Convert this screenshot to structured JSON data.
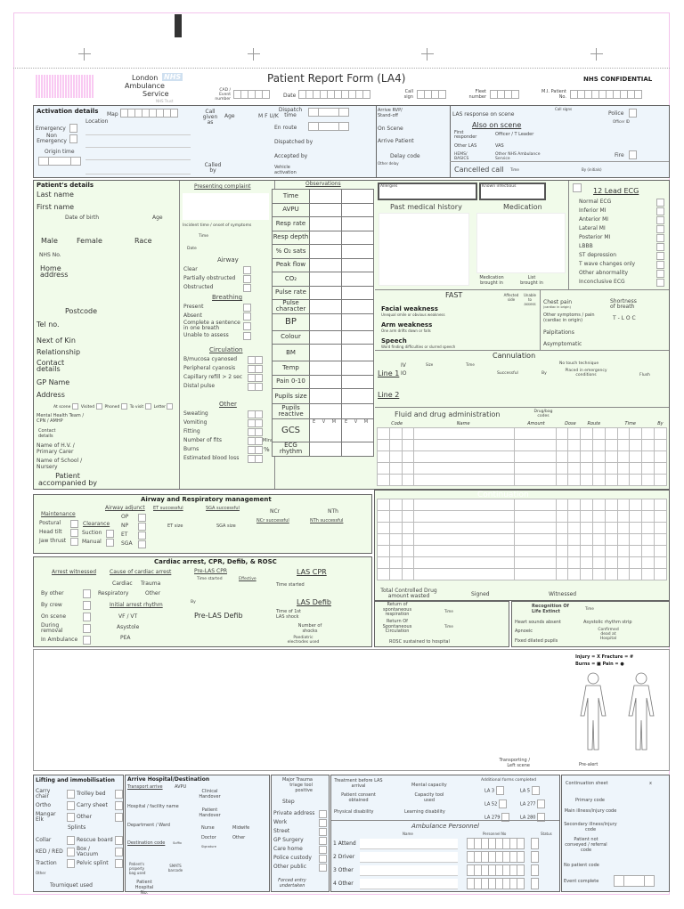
{
  "header": {
    "org_line1": "London",
    "org_line2": "Ambulance",
    "org_line3": "Service",
    "org_sub": "NHS Trust",
    "nhs_logo": "NHS",
    "title": "Patient Report Form (LA4)",
    "confidential": "NHS CONFIDENTIAL",
    "cad": "CAD / Event number",
    "date": "Date",
    "call_sign": "Call sign",
    "fleet": "Fleet number",
    "mi": "M.I. Patient No."
  },
  "activation": {
    "title": "Activation details",
    "map": "Map",
    "location": "Location",
    "emergency": "Emergency",
    "non_emergency": "Non Emergency",
    "origin_time": "Origin time",
    "call_given_as": "Call given as",
    "age": "Age",
    "sex": "M   F   U/K",
    "called_by": "Called by",
    "dispatch_time": "Dispatch time",
    "en_route": "En route",
    "dispatched_by": "Dispatched by",
    "accepted_by": "Accepted by",
    "vehicle_activation": "Vehicle activation",
    "arrive_standoff": "Arrive RVP/ Stand-off",
    "on_scene": "On Scene",
    "arrive_patient": "Arrive Patient",
    "delay_code": "Delay code",
    "other_delay": "Other delay",
    "las_response": "LAS response on scene",
    "also_on_scene": "Also on scene",
    "first_responder": "First responder",
    "officer_leader": "Officer / T Leader",
    "other_las": "Other LAS",
    "vas": "VAS",
    "hems": "HEMS/ BASICS",
    "other_nhs": "Other NHS Ambulance Service",
    "call_signs": "Call signs",
    "police": "Police",
    "officer_id": "Officer ID",
    "fire": "Fire",
    "cancelled_call": "Cancelled call",
    "time": "Time",
    "by_initials": "By (initials)"
  },
  "patient": {
    "title": "Patient's details",
    "last_name": "Last name",
    "first_name": "First name",
    "dob": "Date of birth",
    "age": "Age",
    "male": "Male",
    "female": "Female",
    "race": "Race",
    "nhs_no": "NHS No.",
    "home_address": "Home address",
    "postcode": "Postcode",
    "tel": "Tel no.",
    "next_of_kin": "Next of Kin",
    "relationship": "Relationship",
    "contact_details": "Contact details",
    "gp_name": "GP Name",
    "address": "Address",
    "gp_visit": [
      "At scene",
      "Visited",
      "Phoned",
      "To visit",
      "Letter"
    ],
    "mental_health": "Mental Health Team / CPN / AMHP",
    "mh_contact": "Contact details",
    "hv": "Name of H.V. / Primary Carer",
    "school": "Name of School / Nursery",
    "accompanied": "Patient accompanied by"
  },
  "complaint": {
    "title": "Presenting complaint",
    "incident_time": "Incident time / onset of symptoms",
    "time": "Time",
    "date": "Date",
    "airway": "Airway",
    "airway_items": [
      "Clear",
      "Partially obstructed",
      "Obstructed"
    ],
    "breathing": "Breathing",
    "breathing_items": [
      "Present",
      "Absent",
      "Complete a sentence in one breath",
      "Unable to assess"
    ],
    "circulation": "Circulation",
    "circulation_items": [
      "B/mucosa cyanosed",
      "Peripheral cyanosis",
      "Capillary refill > 2 sec",
      "Distal pulse"
    ],
    "other": "Other",
    "other_items": [
      "Sweating",
      "Vomiting",
      "Fitting",
      "Number of fits",
      "Burns",
      "Estimated blood loss"
    ],
    "mins": "Mins",
    "percent": "%"
  },
  "observations": {
    "title": "Observations",
    "rows": [
      "Time",
      "AVPU",
      "Resp rate",
      "Resp depth",
      "% O₂ sats",
      "Peak flow",
      "CO₂",
      "Pulse rate",
      "Pulse character",
      "BP",
      "Colour",
      "BM",
      "Temp",
      "Pain 0-10",
      "Pupils size",
      "Pupils reactive",
      "GCS",
      "ECG rhythm"
    ],
    "air": "Air",
    "o2": "O₂",
    "r": "R",
    "l": "L",
    "evm": "E V M"
  },
  "history": {
    "allergies": "Allergies",
    "infectious": "Known infectious",
    "pmh": "Past medical history",
    "medication": "Medication",
    "med_brought": "Medication brought in",
    "list_brought": "List brought in"
  },
  "ecg": {
    "title": "12 Lead ECG",
    "items": [
      "Normal ECG",
      "Inferior MI",
      "Anterior MI",
      "Lateral MI",
      "Posterior MI",
      "LBBB",
      "ST depression",
      "T wave changes only",
      "Other abnormality",
      "Inconclusive ECG"
    ]
  },
  "fast": {
    "title": "FAST",
    "unable": "Unable to assess",
    "affected": "Affected side",
    "facial": "Facial weakness",
    "facial_sub": "Unequal smile or obvious weakness",
    "arm": "Arm weakness",
    "arm_sub": "One arm drifts down or falls",
    "speech": "Speech",
    "speech_sub": "Word finding difficulties or slurred speech",
    "chest_pain": "Chest pain",
    "chest_sub": "(cardiac in origin)",
    "other_symptoms": "Other symptoms / pain (cardiac in origin)",
    "palpitations": "Palpitations",
    "asymptomatic": "Asymptomatic",
    "sob": "Shortness of breath",
    "tloc": "T - L O C",
    "y": "Y",
    "n": "N"
  },
  "cannulation": {
    "title": "Cannulation",
    "line1": "Line 1",
    "line2": "Line 2",
    "iv": "IV",
    "io": "IO",
    "size": "Size",
    "time": "Time",
    "successful": "Successful",
    "by": "By",
    "no_touch": "No touch technique",
    "emergency": "Placed in emergency conditions",
    "flush": "Flush",
    "g": "g"
  },
  "fluids": {
    "title": "Fluid and drug administration",
    "drug_codes": "Drug/bag codes",
    "cols": [
      "Code",
      "Name",
      "Amount",
      "Dose",
      "Route",
      "Time",
      "By"
    ],
    "continuation": "Continuation",
    "total_cd": "Total Controlled Drug amount wasted",
    "signed": "Signed",
    "witnessed": "Witnessed"
  },
  "airway_mgmt": {
    "title": "Airway and Respiratory management",
    "maintenance": "Maintenance",
    "maint_items": [
      "Postural",
      "Head tilt",
      "Jaw thrust"
    ],
    "clearance": "Clearance",
    "clear_items": [
      "Suction",
      "Manual"
    ],
    "adjunct": "Airway adjunct",
    "adjunct_items": [
      "OP",
      "NP",
      "ET",
      "SGA"
    ],
    "et_success": "ET successful",
    "sga_success": "SGA successful",
    "et_size": "ET size",
    "sga_size": "SGA size",
    "ncr": "NCr",
    "nth": "NTh",
    "ncr_success": "NCr successful",
    "nth_success": "NTh successful",
    "by": "By",
    "time": "Time"
  },
  "cardiac": {
    "title": "Cardiac arrest,  CPR,  Defib, & ROSC",
    "witnessed": "Arrest witnessed",
    "by_other": "By other",
    "by_crew": "By crew",
    "on_scene": "On scene",
    "during_removal": "During removal",
    "in_ambulance": "In Ambulance",
    "cause": "Cause of cardiac arrest",
    "cardiac": "Cardiac",
    "trauma": "Trauma",
    "respiratory": "Respiratory",
    "other": "Other",
    "rhythm": "Initial arrest rhythm",
    "vf": "VF / VT",
    "asystole": "Asystole",
    "pea": "PEA",
    "pre_cpr": "Pre-LAS CPR",
    "time_started": "Time started",
    "effective": "Effective",
    "by": "By",
    "pre_defib": "Pre-LAS Defib",
    "las_cpr": "LAS CPR",
    "las_defib": "LAS Defib",
    "first_shock": "Time of 1st LAS shock",
    "shocks": "Number of shocks",
    "paed": "Paediatric electrodes used"
  },
  "rosc": {
    "resp": "Return of spontaneous respiration",
    "circ": "Return Of Spontaneous Circulation",
    "sustained": "ROSC sustained to hospital",
    "time": "Time",
    "role": "Recognition Of Life Extinct",
    "heart": "Heart sounds absent",
    "apnoeic": "Apnoeic",
    "pupils": "Fixed dilated pupils",
    "asystolic": "Asystolic rhythm strip",
    "confirmed": "Confirmed dead at Hospital"
  },
  "bodymap": {
    "legend1": "Injury = X   Fracture = #",
    "legend2": "Burns = ■   Pain = ●",
    "transporting": "Transporting / Left scene",
    "prealert": "Pre-alert"
  },
  "lifting": {
    "title": "Lifting and immobilisation",
    "items_left": [
      "Carry chair",
      "Ortho",
      "Mangar Elk"
    ],
    "items_right": [
      "Trolley bed",
      "Carry sheet",
      "Other"
    ],
    "splints": "Splints",
    "splints_left": [
      "Collar",
      "KED / RED",
      "Traction"
    ],
    "splints_right": [
      "Rescue board",
      "Box / Vacuum",
      "Pelvic splint"
    ],
    "other": "Other",
    "tourniquet": "Tourniquet used"
  },
  "arrive": {
    "title": "Arrive Hospital/Destination",
    "transport": "Transport arrive",
    "avpu": "AVPU",
    "hospital": "Hospital / facility name",
    "department": "Department / Ward",
    "destination": "Destination code",
    "suffix": "Suffix",
    "clinical": "Clinical Handover",
    "patient_handover": "Patient Handover",
    "nurse": "Nurse",
    "midwife": "Midwife",
    "doctor": "Doctor",
    "other": "Other",
    "signature": "Signature",
    "property": "Patient's property bag used",
    "smats": "SMATS barcode",
    "hospital_no": "Patient Hospital No."
  },
  "trauma": {
    "title": "Major Trauma triage tool positive",
    "step": "Step",
    "locations": [
      "Private address",
      "Work",
      "Street",
      "GP Surgery",
      "Care home",
      "Police custody",
      "Other public"
    ],
    "forced": "Forced entry undertaken"
  },
  "consent": {
    "treatment": "Treatment before LAS arrival",
    "consent": "Patient consent obtained",
    "physical": "Physical disability",
    "mental": "Mental capacity",
    "capacity": "Capacity tool used",
    "learning": "Learning disability",
    "forms": "Additional forms completed",
    "form_items": [
      "LA 3",
      "LA 5",
      "LA 52",
      "LA 277",
      "LA 279",
      "LA 280"
    ]
  },
  "personnel": {
    "title": "Ambulance Personnel",
    "name": "Name",
    "pno": "Personnel No",
    "status": "Status",
    "rows": [
      "1  Attend",
      "2  Driver",
      "3  Other",
      "4  Other"
    ]
  },
  "codes": {
    "continuation": "Continuation sheet",
    "x": "x",
    "primary": "Primary code",
    "main": "Main illness/injury code",
    "secondary": "Secondary illness/injury code",
    "not_conveyed": "Patient not conveyed / referral code",
    "no_patient": "No patient code",
    "event_complete": "Event complete"
  },
  "colors": {
    "green_bg": "#f1fbea",
    "blue_bg": "#eef5fb",
    "frame": "#f3c3ec",
    "barcode": "#f9c9f2"
  }
}
